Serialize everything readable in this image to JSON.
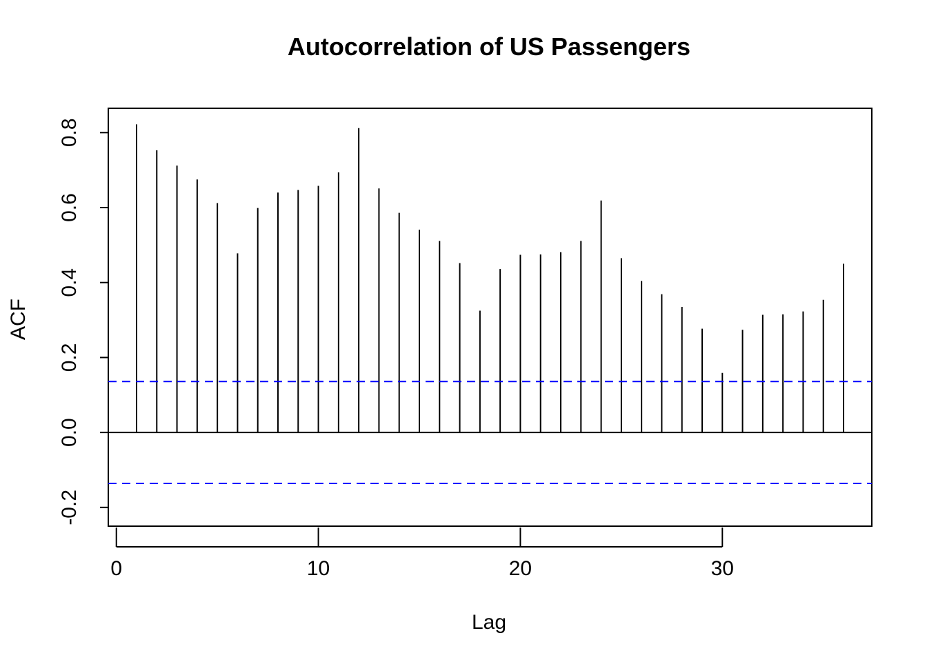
{
  "chart_data": {
    "type": "bar",
    "title": "Autocorrelation of US Passengers",
    "xlabel": "Lag",
    "ylabel": "ACF",
    "xlim": [
      -0.4,
      37.4
    ],
    "ylim": [
      -0.25,
      0.865
    ],
    "xticks": [
      0,
      10,
      20,
      30
    ],
    "yticks": [
      -0.2,
      0.0,
      0.2,
      0.4,
      0.6,
      0.8
    ],
    "ytick_labels": [
      "-0.2",
      "0.0",
      "0.2",
      "0.4",
      "0.6",
      "0.8"
    ],
    "xtick_labels": [
      "0",
      "10",
      "20",
      "30"
    ],
    "lags": [
      1,
      2,
      3,
      4,
      5,
      6,
      7,
      8,
      9,
      10,
      11,
      12,
      13,
      14,
      15,
      16,
      17,
      18,
      19,
      20,
      21,
      22,
      23,
      24,
      25,
      26,
      27,
      28,
      29,
      30,
      31,
      32,
      33,
      34,
      35,
      36
    ],
    "values": [
      0.822,
      0.753,
      0.712,
      0.675,
      0.612,
      0.478,
      0.599,
      0.64,
      0.647,
      0.658,
      0.694,
      0.812,
      0.651,
      0.586,
      0.541,
      0.511,
      0.452,
      0.325,
      0.436,
      0.474,
      0.475,
      0.481,
      0.511,
      0.619,
      0.465,
      0.404,
      0.369,
      0.335,
      0.277,
      0.159,
      0.274,
      0.314,
      0.315,
      0.323,
      0.354,
      0.45
    ],
    "confidence_bound": 0.136,
    "colors": {
      "bars": "#000000",
      "confidence": "#0000ff",
      "zero_line": "#000000"
    },
    "grid": false,
    "legend": "none"
  }
}
